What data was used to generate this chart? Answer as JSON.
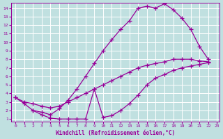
{
  "bg_color": "#c0e0e0",
  "grid_color": "#ffffff",
  "line_color": "#990099",
  "xlabel": "Windchill (Refroidissement éolien,°C)",
  "xlim": [
    -0.5,
    23.3
  ],
  "ylim": [
    0.7,
    14.6
  ],
  "xticks": [
    0,
    1,
    2,
    3,
    4,
    5,
    6,
    7,
    8,
    9,
    10,
    11,
    12,
    13,
    14,
    15,
    16,
    17,
    18,
    19,
    20,
    21,
    22,
    23
  ],
  "yticks": [
    1,
    2,
    3,
    4,
    5,
    6,
    7,
    8,
    9,
    10,
    11,
    12,
    13,
    14
  ],
  "curve1_x": [
    0,
    1,
    2,
    3,
    4,
    5,
    6,
    7,
    8,
    9,
    10,
    11,
    12,
    13,
    14,
    15,
    16,
    17,
    18,
    19,
    20,
    21,
    22
  ],
  "curve1_y": [
    3.5,
    2.8,
    2.0,
    1.8,
    1.5,
    2.2,
    3.2,
    4.5,
    6.0,
    7.5,
    9.0,
    10.3,
    11.5,
    12.5,
    14.0,
    14.2,
    14.0,
    14.5,
    13.8,
    12.8,
    11.5,
    9.5,
    8.0
  ],
  "curve2_x": [
    0,
    1,
    2,
    3,
    4,
    5,
    6,
    7,
    8,
    9,
    10,
    11,
    12,
    13,
    14,
    15,
    16,
    17,
    18,
    19,
    20,
    21,
    22
  ],
  "curve2_y": [
    3.5,
    3.0,
    2.8,
    2.5,
    2.3,
    2.5,
    3.0,
    3.5,
    4.0,
    4.5,
    5.0,
    5.5,
    6.0,
    6.5,
    7.0,
    7.3,
    7.5,
    7.7,
    8.0,
    8.0,
    8.0,
    7.8,
    7.7
  ],
  "curve3_x": [
    2,
    3,
    4,
    5,
    6,
    7,
    8,
    9,
    10,
    11,
    12,
    13,
    14,
    15,
    16,
    17,
    18,
    19,
    20,
    21,
    22
  ],
  "curve3_y": [
    2.0,
    1.5,
    1.1,
    1.0,
    1.0,
    1.0,
    1.0,
    4.5,
    1.2,
    1.4,
    2.0,
    2.8,
    3.8,
    5.0,
    5.8,
    6.2,
    6.7,
    7.0,
    7.2,
    7.4,
    7.6
  ]
}
